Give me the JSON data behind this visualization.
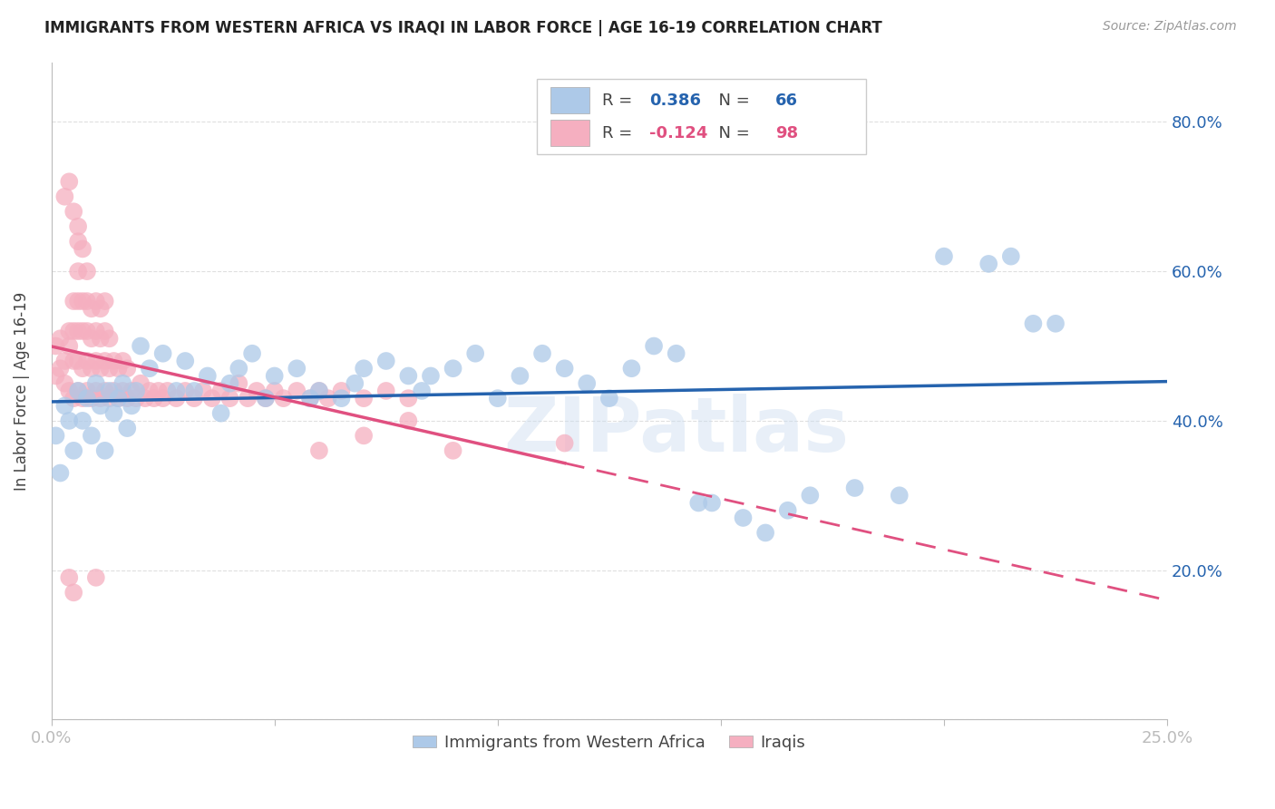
{
  "title": "IMMIGRANTS FROM WESTERN AFRICA VS IRAQI IN LABOR FORCE | AGE 16-19 CORRELATION CHART",
  "source": "Source: ZipAtlas.com",
  "ylabel": "In Labor Force | Age 16-19",
  "xlim": [
    0.0,
    0.25
  ],
  "ylim": [
    0.0,
    0.88
  ],
  "blue_r": 0.386,
  "blue_n": 66,
  "pink_r": -0.124,
  "pink_n": 98,
  "blue_color": "#adc9e8",
  "pink_color": "#f5afc0",
  "blue_line_color": "#2563ae",
  "pink_line_color": "#e05080",
  "watermark": "ZIPatlas",
  "legend_blue_label": "Immigrants from Western Africa",
  "legend_pink_label": "Iraqis",
  "background_color": "#ffffff",
  "grid_color": "#d8d8d8",
  "blue_scatter_x": [
    0.001,
    0.002,
    0.003,
    0.004,
    0.005,
    0.006,
    0.007,
    0.008,
    0.009,
    0.01,
    0.011,
    0.012,
    0.013,
    0.014,
    0.015,
    0.016,
    0.017,
    0.018,
    0.019,
    0.02,
    0.022,
    0.025,
    0.028,
    0.03,
    0.032,
    0.035,
    0.038,
    0.04,
    0.042,
    0.045,
    0.048,
    0.05,
    0.055,
    0.058,
    0.06,
    0.065,
    0.068,
    0.07,
    0.075,
    0.08,
    0.083,
    0.085,
    0.09,
    0.095,
    0.1,
    0.105,
    0.11,
    0.115,
    0.12,
    0.125,
    0.13,
    0.135,
    0.14,
    0.145,
    0.148,
    0.155,
    0.16,
    0.165,
    0.17,
    0.18,
    0.19,
    0.2,
    0.21,
    0.215,
    0.22,
    0.225
  ],
  "blue_scatter_y": [
    0.38,
    0.33,
    0.42,
    0.4,
    0.36,
    0.44,
    0.4,
    0.43,
    0.38,
    0.45,
    0.42,
    0.36,
    0.44,
    0.41,
    0.43,
    0.45,
    0.39,
    0.42,
    0.44,
    0.5,
    0.47,
    0.49,
    0.44,
    0.48,
    0.44,
    0.46,
    0.41,
    0.45,
    0.47,
    0.49,
    0.43,
    0.46,
    0.47,
    0.43,
    0.44,
    0.43,
    0.45,
    0.47,
    0.48,
    0.46,
    0.44,
    0.46,
    0.47,
    0.49,
    0.43,
    0.46,
    0.49,
    0.47,
    0.45,
    0.43,
    0.47,
    0.5,
    0.49,
    0.29,
    0.29,
    0.27,
    0.25,
    0.28,
    0.3,
    0.31,
    0.3,
    0.62,
    0.61,
    0.62,
    0.53,
    0.53
  ],
  "pink_scatter_x": [
    0.001,
    0.001,
    0.002,
    0.002,
    0.003,
    0.003,
    0.003,
    0.004,
    0.004,
    0.004,
    0.004,
    0.005,
    0.005,
    0.005,
    0.005,
    0.005,
    0.006,
    0.006,
    0.006,
    0.006,
    0.006,
    0.006,
    0.006,
    0.007,
    0.007,
    0.007,
    0.007,
    0.007,
    0.008,
    0.008,
    0.008,
    0.008,
    0.008,
    0.009,
    0.009,
    0.009,
    0.009,
    0.01,
    0.01,
    0.01,
    0.01,
    0.011,
    0.011,
    0.011,
    0.011,
    0.012,
    0.012,
    0.012,
    0.012,
    0.013,
    0.013,
    0.013,
    0.014,
    0.014,
    0.015,
    0.015,
    0.016,
    0.016,
    0.017,
    0.017,
    0.018,
    0.019,
    0.02,
    0.021,
    0.022,
    0.023,
    0.024,
    0.025,
    0.026,
    0.028,
    0.03,
    0.032,
    0.034,
    0.036,
    0.038,
    0.04,
    0.042,
    0.044,
    0.046,
    0.048,
    0.05,
    0.052,
    0.055,
    0.058,
    0.06,
    0.062,
    0.065,
    0.07,
    0.075,
    0.08,
    0.004,
    0.005,
    0.01,
    0.115,
    0.06,
    0.07,
    0.08,
    0.09
  ],
  "pink_scatter_y": [
    0.46,
    0.5,
    0.47,
    0.51,
    0.45,
    0.48,
    0.7,
    0.44,
    0.5,
    0.52,
    0.72,
    0.43,
    0.48,
    0.52,
    0.56,
    0.68,
    0.44,
    0.48,
    0.52,
    0.56,
    0.6,
    0.64,
    0.66,
    0.43,
    0.47,
    0.52,
    0.56,
    0.63,
    0.44,
    0.48,
    0.52,
    0.56,
    0.6,
    0.43,
    0.47,
    0.51,
    0.55,
    0.44,
    0.48,
    0.52,
    0.56,
    0.43,
    0.47,
    0.51,
    0.55,
    0.44,
    0.48,
    0.52,
    0.56,
    0.43,
    0.47,
    0.51,
    0.44,
    0.48,
    0.43,
    0.47,
    0.44,
    0.48,
    0.43,
    0.47,
    0.44,
    0.43,
    0.45,
    0.43,
    0.44,
    0.43,
    0.44,
    0.43,
    0.44,
    0.43,
    0.44,
    0.43,
    0.44,
    0.43,
    0.44,
    0.43,
    0.45,
    0.43,
    0.44,
    0.43,
    0.44,
    0.43,
    0.44,
    0.43,
    0.44,
    0.43,
    0.44,
    0.43,
    0.44,
    0.43,
    0.19,
    0.17,
    0.19,
    0.37,
    0.36,
    0.38,
    0.4,
    0.36
  ]
}
